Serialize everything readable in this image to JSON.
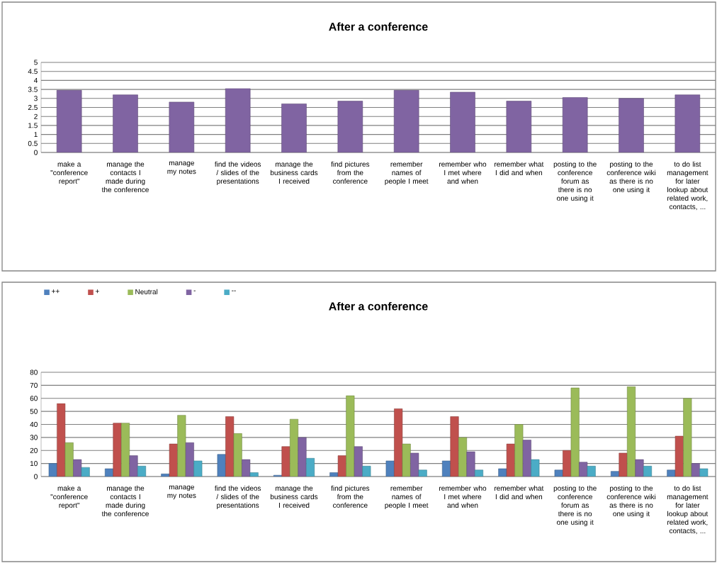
{
  "chart_data": [
    {
      "type": "bar",
      "title": "After a conference",
      "categories": [
        "make a \"conference report\"",
        "manage the contacts I made during the conference",
        "manage my notes",
        "find the videos / slides of the presentations",
        "manage the business cards I received",
        "find pictures from the conference",
        "remember names of people I meet",
        "remember who I met where and when",
        "remember what I did and when",
        "posting to the conference forum as there is no one using it",
        "posting to the conference wiki as there is no one using it",
        "to do list management for later lookup about related work, contacts, ..."
      ],
      "values": [
        3.45,
        3.2,
        2.8,
        3.55,
        2.7,
        2.85,
        3.45,
        3.35,
        2.85,
        3.05,
        3.0,
        3.2
      ],
      "color": "#8064a2",
      "ylim": [
        0,
        5
      ],
      "yticks": [
        0,
        0.5,
        1,
        1.5,
        2,
        2.5,
        3,
        3.5,
        4,
        4.5,
        5
      ],
      "grid": "y"
    },
    {
      "type": "bar",
      "title": "After a conference",
      "categories": [
        "make a \"conference report\"",
        "manage the contacts I made during the conference",
        "manage my notes",
        "find the videos / slides of the presentations",
        "manage the business cards I received",
        "find pictures from the conference",
        "remember names of people I meet",
        "remember who I met where and when",
        "remember what I did and when",
        "posting to the conference forum as there is no one using it",
        "posting to the conference wiki as there is no one using it",
        "to do list management for later lookup about related work, contacts, ..."
      ],
      "series": [
        {
          "name": "++",
          "color": "#4f81bd",
          "values": [
            10,
            6,
            2,
            17,
            1,
            3,
            12,
            12,
            6,
            5,
            4,
            5
          ]
        },
        {
          "name": "+",
          "color": "#c0504d",
          "values": [
            56,
            41,
            25,
            46,
            23,
            16,
            52,
            46,
            25,
            20,
            18,
            31
          ]
        },
        {
          "name": "Neutral",
          "color": "#9bbb59",
          "values": [
            26,
            41,
            47,
            33,
            44,
            62,
            25,
            30,
            40,
            68,
            69,
            60
          ]
        },
        {
          "name": "-",
          "color": "#8064a2",
          "values": [
            13,
            16,
            26,
            13,
            30,
            23,
            18,
            19,
            28,
            11,
            13,
            10
          ]
        },
        {
          "name": "--",
          "color": "#4bacc6",
          "values": [
            7,
            8,
            12,
            3,
            14,
            8,
            5,
            5,
            13,
            8,
            8,
            6
          ]
        }
      ],
      "ylim": [
        0,
        80
      ],
      "yticks": [
        0,
        10,
        20,
        30,
        40,
        50,
        60,
        70,
        80
      ],
      "grid": "y",
      "legend": "top left"
    }
  ]
}
